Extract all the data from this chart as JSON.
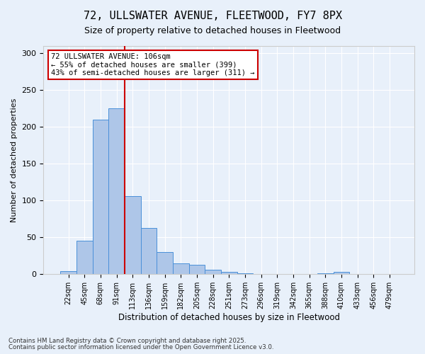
{
  "title1": "72, ULLSWATER AVENUE, FLEETWOOD, FY7 8PX",
  "title2": "Size of property relative to detached houses in Fleetwood",
  "xlabel": "Distribution of detached houses by size in Fleetwood",
  "ylabel": "Number of detached properties",
  "bar_values": [
    4,
    46,
    210,
    225,
    106,
    63,
    30,
    15,
    13,
    6,
    3,
    1,
    0,
    0,
    0,
    0,
    1,
    3,
    0,
    0,
    0
  ],
  "categories": [
    "22sqm",
    "45sqm",
    "68sqm",
    "91sqm",
    "113sqm",
    "136sqm",
    "159sqm",
    "182sqm",
    "205sqm",
    "228sqm",
    "251sqm",
    "273sqm",
    "296sqm",
    "319sqm",
    "342sqm",
    "365sqm",
    "388sqm",
    "410sqm",
    "433sqm",
    "456sqm",
    "479sqm"
  ],
  "bar_color": "#aec6e8",
  "bar_edge_color": "#4a90d9",
  "vline_x": 3.5,
  "vline_color": "#cc0000",
  "annotation_text": "72 ULLSWATER AVENUE: 106sqm\n← 55% of detached houses are smaller (399)\n43% of semi-detached houses are larger (311) →",
  "annotation_box_color": "#ffffff",
  "annotation_box_edge": "#cc0000",
  "ylim": [
    0,
    310
  ],
  "yticks": [
    0,
    50,
    100,
    150,
    200,
    250,
    300
  ],
  "footer1": "Contains HM Land Registry data © Crown copyright and database right 2025.",
  "footer2": "Contains public sector information licensed under the Open Government Licence v3.0.",
  "bg_color": "#e8f0fa"
}
